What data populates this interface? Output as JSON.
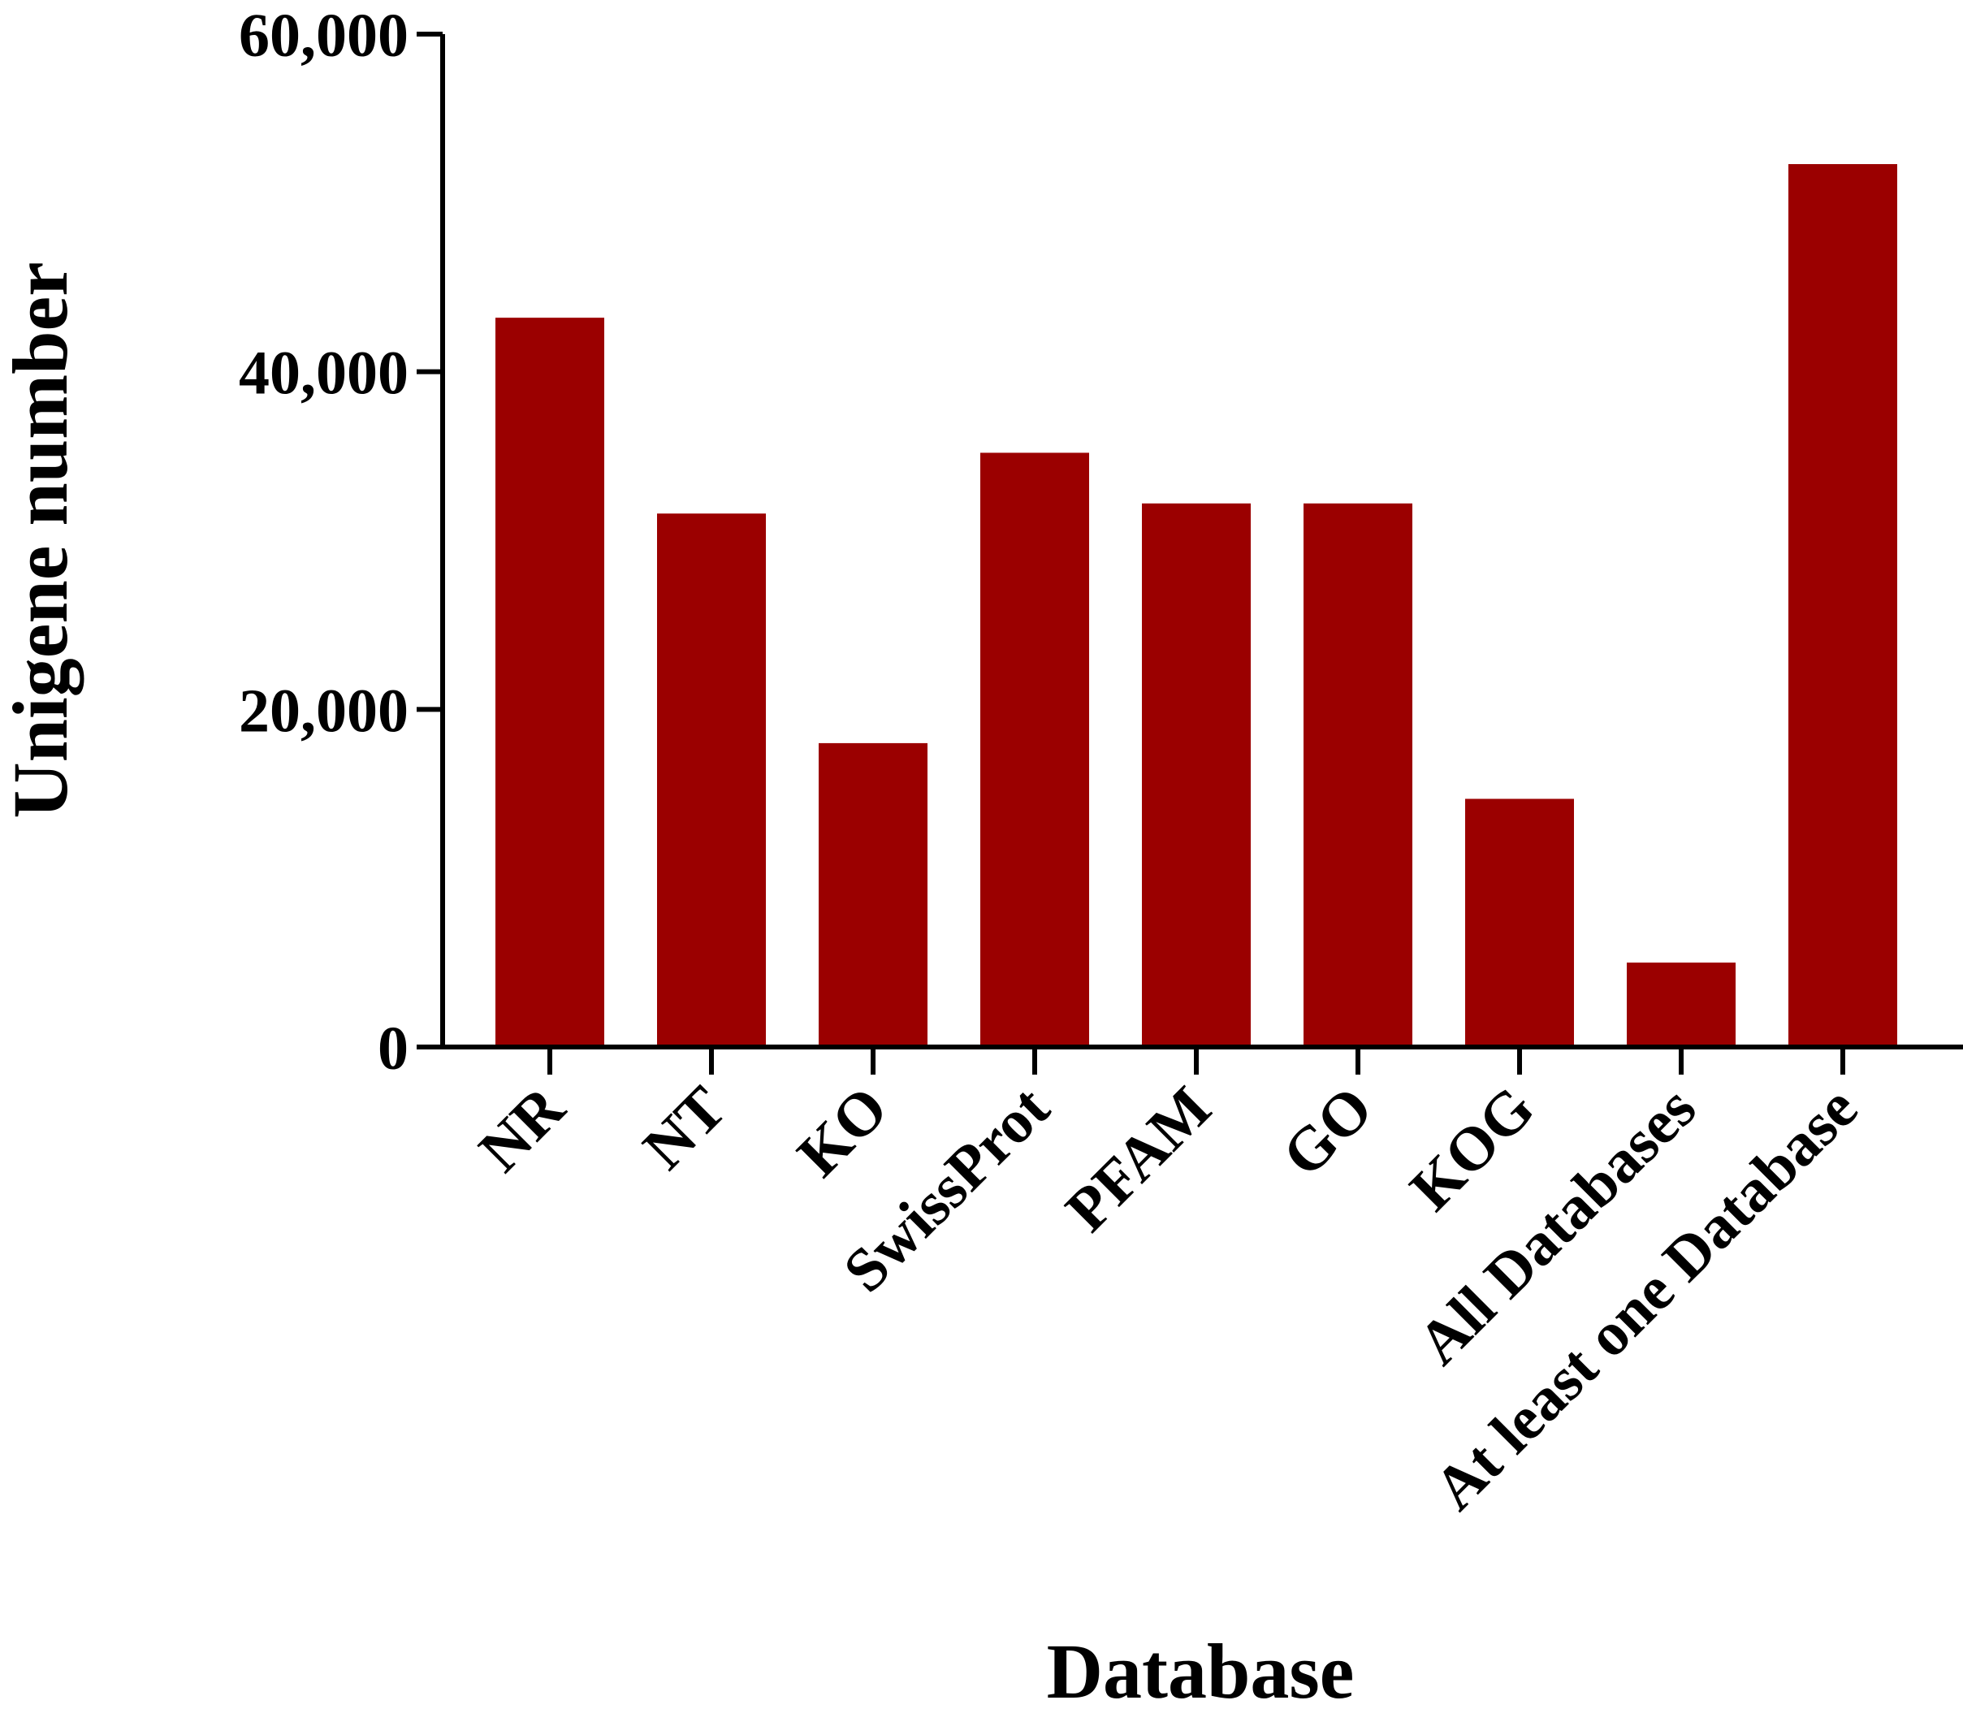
{
  "chart_data": {
    "type": "bar",
    "title": "",
    "xlabel": "Database",
    "ylabel": "Unigene number",
    "categories": [
      "NR",
      "NT",
      "KO",
      "SwissProt",
      "PFAM",
      "GO",
      "KOG",
      "All Databases",
      "At least one Database"
    ],
    "values": [
      43200,
      31600,
      18000,
      35200,
      32200,
      32200,
      14700,
      5000,
      52300
    ],
    "ylim": [
      0,
      60000
    ],
    "yticks": [
      0,
      20000,
      40000,
      60000
    ],
    "ytick_labels": [
      "0",
      "20,000",
      "40,000",
      "60,000"
    ],
    "grid": false,
    "legend": "none",
    "bar_color": "#9b0000"
  }
}
